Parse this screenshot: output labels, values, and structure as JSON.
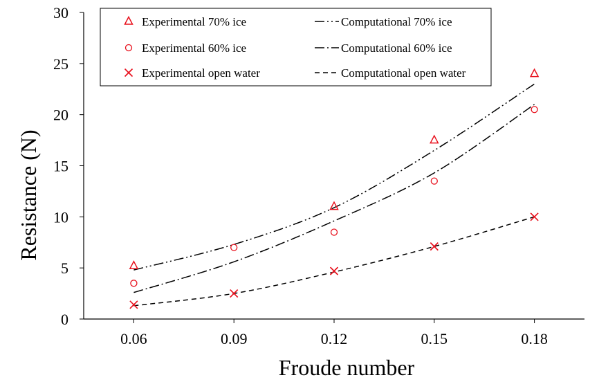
{
  "chart_data": {
    "type": "scatter",
    "title": "",
    "xlabel": "Froude number",
    "ylabel": "Resistance (N)",
    "x_categories": [
      "0.06",
      "0.09",
      "0.12",
      "0.15",
      "0.18"
    ],
    "xlim": [
      0.045,
      0.195
    ],
    "ylim": [
      0,
      30
    ],
    "y_ticks": [
      0,
      5,
      10,
      15,
      20,
      25,
      30
    ],
    "grid": false,
    "legend_position": "top",
    "series": [
      {
        "name": "Experimental 70% ice",
        "kind": "marker",
        "marker": "triangle",
        "color": "#e8101c",
        "x": [
          0.06,
          0.12,
          0.15,
          0.18
        ],
        "y": [
          5.2,
          11.0,
          17.5,
          24.0
        ]
      },
      {
        "name": "Experimental 60% ice",
        "kind": "marker",
        "marker": "circle",
        "color": "#e8101c",
        "x": [
          0.06,
          0.09,
          0.12,
          0.15,
          0.18
        ],
        "y": [
          3.5,
          7.0,
          8.5,
          13.5,
          20.5
        ]
      },
      {
        "name": "Experimental open water",
        "kind": "marker",
        "marker": "cross",
        "color": "#e8101c",
        "x": [
          0.06,
          0.09,
          0.12,
          0.15,
          0.18
        ],
        "y": [
          1.4,
          2.5,
          4.7,
          7.1,
          10.0
        ]
      },
      {
        "name": "Computational 70% ice",
        "kind": "line",
        "dash": "dash-dot-dot",
        "color": "#000000",
        "x": [
          0.06,
          0.09,
          0.12,
          0.15,
          0.18
        ],
        "y": [
          4.8,
          7.3,
          10.9,
          16.5,
          23.0
        ]
      },
      {
        "name": "Computational 60% ice",
        "kind": "line",
        "dash": "dash-dot",
        "color": "#000000",
        "x": [
          0.06,
          0.09,
          0.12,
          0.15,
          0.18
        ],
        "y": [
          2.6,
          5.6,
          9.6,
          14.3,
          21.0
        ]
      },
      {
        "name": "Computational open water",
        "kind": "line",
        "dash": "dashed",
        "color": "#000000",
        "x": [
          0.06,
          0.09,
          0.12,
          0.15,
          0.18
        ],
        "y": [
          1.3,
          2.5,
          4.6,
          7.1,
          10.0
        ]
      }
    ],
    "legend": {
      "left_column": [
        "Experimental 70% ice",
        "Experimental 60% ice",
        "Experimental open water"
      ],
      "right_column": [
        "Computational 70% ice",
        "Computational 60% ice",
        "Computational open water"
      ]
    }
  }
}
